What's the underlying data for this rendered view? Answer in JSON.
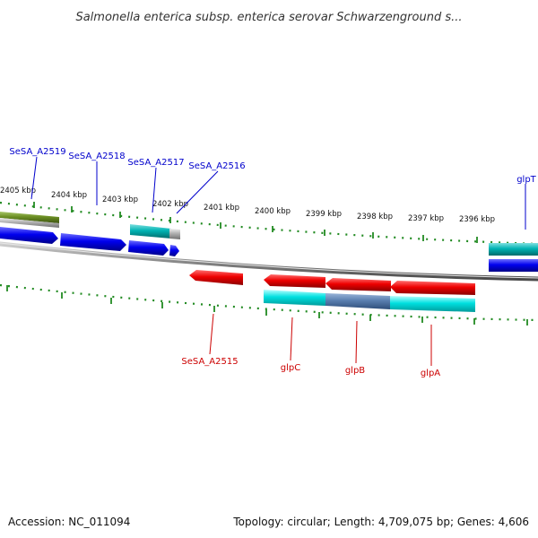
{
  "title": "Salmonella enterica subsp. enterica serovar Schwarzenground s...",
  "footer": {
    "accession": "Accession: NC_011094",
    "topology": "Topology: circular; Length: 4,709,075 bp; Genes: 4,606"
  },
  "colors": {
    "top_labels": "#0000cc",
    "bottom_labels": "#cc0000",
    "ticks": "#228b22",
    "backbone": "#909090",
    "blue_feature": "#0000ee",
    "cyan_feature": "#00dddd",
    "red_feature": "#ee0000",
    "olive_feature": "#6b8e23",
    "grey_feature": "#a8a8a8",
    "overlap_feature": "#5a7fb0"
  },
  "ruler_labels": [
    "2405 kbp",
    "2404 kbp",
    "2403 kbp",
    "2402 kbp",
    "2401 kbp",
    "2400 kbp",
    "2399 kbp",
    "2398 kbp",
    "2397 kbp",
    "2396 kbp"
  ],
  "gene_labels_top": [
    "SeSA_A2519",
    "SeSA_A2518",
    "SeSA_A2517",
    "SeSA_A2516",
    "glpT"
  ],
  "gene_labels_bottom": [
    "SeSA_A2515",
    "glpC",
    "glpB",
    "glpA"
  ]
}
